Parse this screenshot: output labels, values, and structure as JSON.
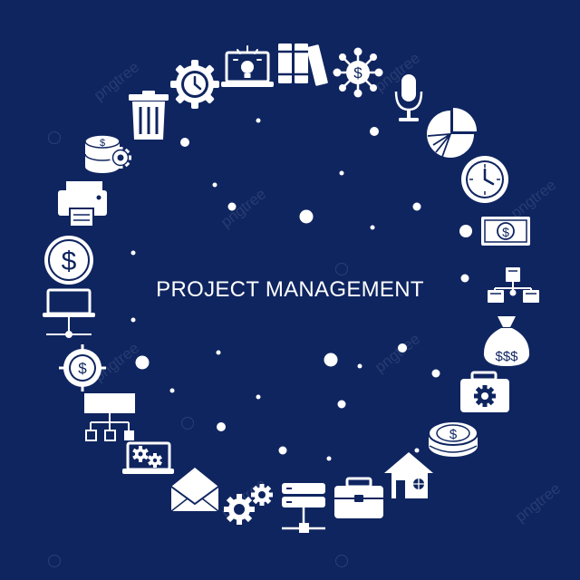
{
  "title": "PROJECT MANAGEMENT",
  "colors": {
    "background": "#0f2560",
    "foreground": "#ffffff"
  },
  "icons": [
    "gear-clock-icon",
    "laptop-lightbulb-icon",
    "books-icon",
    "dollar-network-icon",
    "microphone-icon",
    "pie-chart-icon",
    "wall-clock-icon",
    "banknote-icon",
    "network-servers-icon",
    "money-bag-icon",
    "briefcase-gear-icon",
    "coin-stack-icon",
    "house-icon",
    "briefcase-icon",
    "server-network-icon",
    "gears-icon",
    "envelope-icon",
    "laptop-gears-icon",
    "org-chart-icon",
    "dollar-target-icon",
    "laptop-network-icon",
    "dollar-coin-icon",
    "printer-icon",
    "coins-gear-icon",
    "trash-bin-icon"
  ]
}
